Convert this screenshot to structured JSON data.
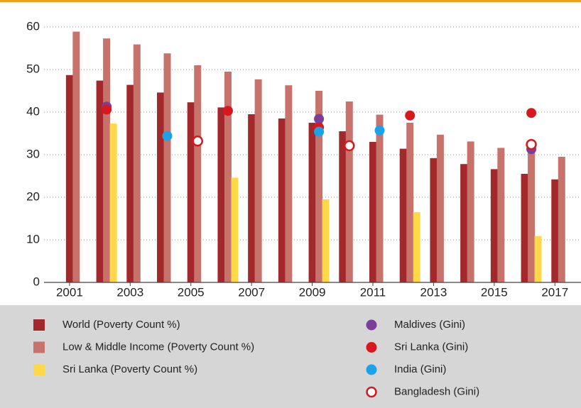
{
  "chart_data": {
    "type": "bar",
    "x": [
      2001,
      2002,
      2003,
      2004,
      2005,
      2006,
      2007,
      2008,
      2009,
      2010,
      2011,
      2012,
      2013,
      2014,
      2015,
      2016,
      2017
    ],
    "xlim": [
      2000.16,
      2017.86
    ],
    "xticks": [
      2001,
      2003,
      2005,
      2007,
      2009,
      2011,
      2013,
      2015,
      2017
    ],
    "ylim": [
      0,
      60
    ],
    "yticks": [
      0,
      10,
      20,
      30,
      40,
      50,
      60
    ],
    "grid": true,
    "series": [
      {
        "name": "World (Poverty Count %)",
        "color": "#a3282b",
        "marker": "bar",
        "values": [
          48.7,
          47.4,
          46.4,
          44.6,
          42.3,
          41.1,
          39.5,
          38.5,
          37.5,
          35.5,
          33.0,
          31.4,
          29.2,
          27.8,
          26.6,
          25.5,
          24.2
        ]
      },
      {
        "name": "Low & Middle Income (Poverty Count %)",
        "color": "#c7726a",
        "marker": "bar",
        "values": [
          58.9,
          57.3,
          55.9,
          53.8,
          51.0,
          49.5,
          47.7,
          46.3,
          45.0,
          42.5,
          39.4,
          37.5,
          34.7,
          33.1,
          31.6,
          30.9,
          29.5
        ]
      },
      {
        "name": "Sri Lanka (Poverty Count %)",
        "color": "#ffd84a",
        "marker": "bar",
        "values": [
          null,
          37.3,
          null,
          null,
          null,
          24.6,
          null,
          null,
          19.5,
          null,
          null,
          16.5,
          null,
          null,
          null,
          10.9,
          null
        ]
      },
      {
        "name": "Maldives (Gini)",
        "color": "#7b3f9a",
        "marker": "dot",
        "values": [
          null,
          41.3,
          null,
          null,
          null,
          null,
          null,
          null,
          38.4,
          null,
          null,
          null,
          null,
          null,
          null,
          31.3,
          null
        ]
      },
      {
        "name": "Sri Lanka (Gini)",
        "color": "#d7191f",
        "marker": "dot",
        "values": [
          null,
          40.6,
          null,
          null,
          null,
          40.3,
          null,
          null,
          36.4,
          null,
          null,
          39.2,
          null,
          null,
          null,
          39.8,
          null
        ]
      },
      {
        "name": "India (Gini)",
        "color": "#1aa3e8",
        "marker": "dot",
        "values": [
          null,
          null,
          null,
          34.4,
          null,
          null,
          null,
          null,
          35.4,
          null,
          35.7,
          null,
          null,
          null,
          null,
          null,
          null
        ]
      },
      {
        "name": "Bangladesh (Gini)",
        "color": "#d7191f",
        "marker": "ring",
        "values": [
          null,
          null,
          null,
          null,
          33.2,
          null,
          null,
          null,
          null,
          32.1,
          null,
          null,
          null,
          null,
          null,
          32.4,
          null
        ]
      }
    ]
  }
}
